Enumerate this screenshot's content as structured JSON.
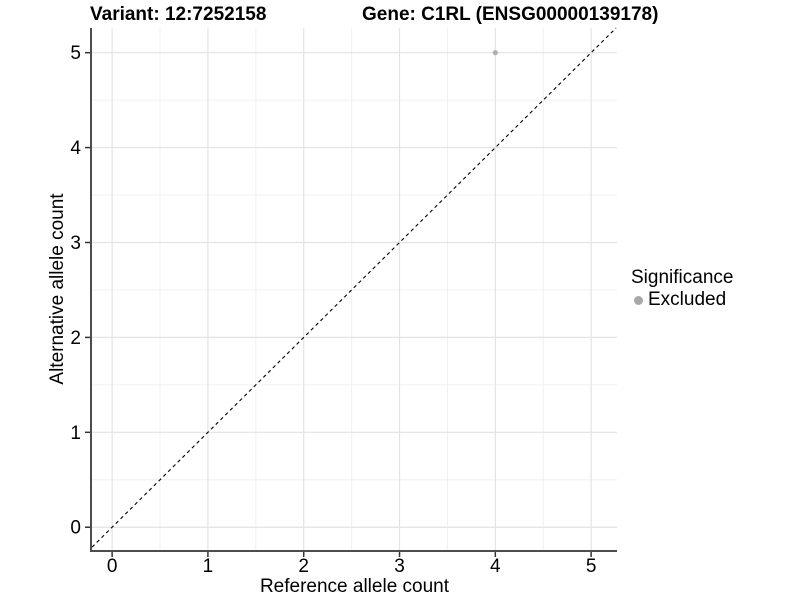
{
  "chart_data": {
    "type": "scatter",
    "titles": {
      "variant": "Variant: 12:7252158",
      "gene": "Gene: C1RL (ENSG00000139178)"
    },
    "xlabel": "Reference allele count",
    "ylabel": "Alternative allele count",
    "x_ticks": [
      0,
      1,
      2,
      3,
      4,
      5
    ],
    "y_ticks": [
      0,
      1,
      2,
      3,
      4,
      5
    ],
    "xlim": [
      -0.21,
      5.27
    ],
    "ylim": [
      -0.24,
      5.26
    ],
    "grid": "major and minor gridlines, white panel background",
    "identity_line": {
      "style": "dashed",
      "slope": 1,
      "intercept": 0,
      "color": "#000000"
    },
    "series": [
      {
        "name": "Excluded",
        "color": "#b0b0b0",
        "points": [
          {
            "x": 4,
            "y": 5
          }
        ]
      }
    ],
    "legend": {
      "title": "Significance",
      "position": "right",
      "items": [
        {
          "label": "Excluded",
          "color": "#a8a8a8",
          "marker": "circle"
        }
      ]
    }
  }
}
